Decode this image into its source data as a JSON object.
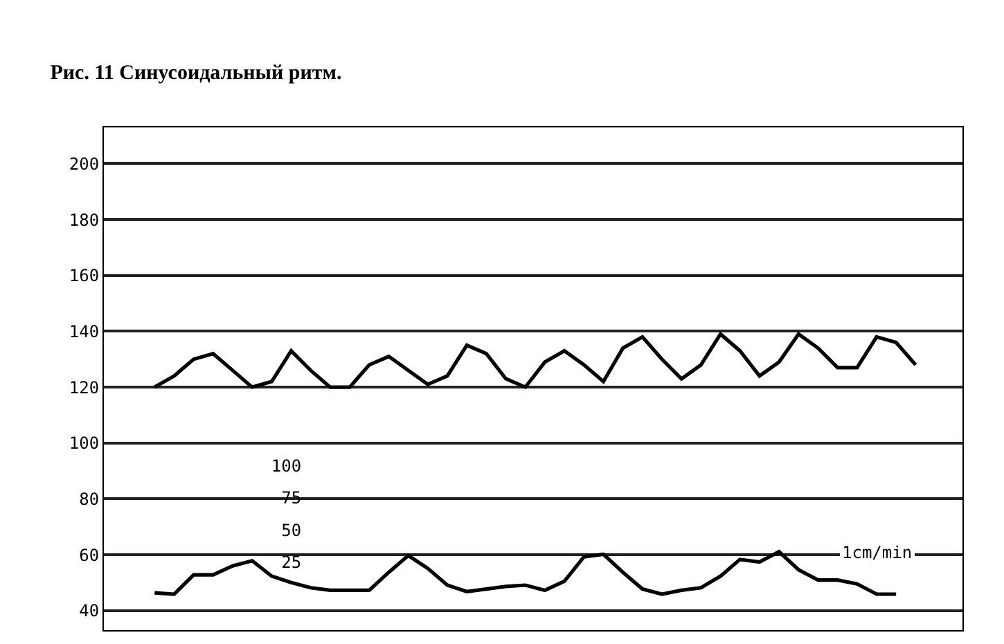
{
  "chart_data": {
    "type": "line",
    "title": "Рис. 11 Синусоидальный ритм.",
    "annotations": [
      "1cm/min"
    ],
    "categories": [
      null,
      null,
      null,
      null,
      null,
      null,
      null,
      null,
      null,
      null,
      null,
      null,
      null,
      null,
      null,
      null,
      null,
      null,
      null,
      null,
      null,
      null,
      null,
      null,
      null,
      null,
      null,
      null,
      null,
      null,
      null,
      null,
      null,
      null,
      null,
      null,
      null,
      null,
      null,
      null
    ],
    "series": [
      {
        "color": "#000000",
        "values": [
          120,
          124,
          130,
          132,
          126,
          120,
          122,
          133,
          126,
          120,
          120,
          128,
          131,
          126,
          121,
          124,
          135,
          132,
          123,
          120,
          129,
          133,
          128,
          122,
          134,
          138,
          130,
          123,
          128,
          139,
          133,
          124,
          129,
          139,
          134,
          127,
          127,
          138,
          136,
          128
        ]
      },
      {
        "color": "#000000",
        "axis": "y2",
        "values": [
          1,
          0,
          15,
          15,
          22,
          26,
          14,
          9,
          5,
          3,
          3,
          3,
          17,
          30,
          20,
          7,
          2,
          4,
          6,
          7,
          3,
          10,
          29,
          31,
          17,
          4,
          0,
          3,
          5,
          14,
          27,
          25,
          33,
          19,
          11,
          11,
          8,
          0,
          0,
          null
        ]
      }
    ],
    "ylim": [
      33,
      213
    ],
    "yticks": [
      40,
      60,
      80,
      100,
      120,
      140,
      160,
      180,
      200
    ],
    "y2lim": [
      -28,
      363
    ],
    "y2ticks": [
      25,
      50,
      75,
      100
    ],
    "tick_labels": "y",
    "grid": "y",
    "marker": "none",
    "line_style": "solid"
  }
}
